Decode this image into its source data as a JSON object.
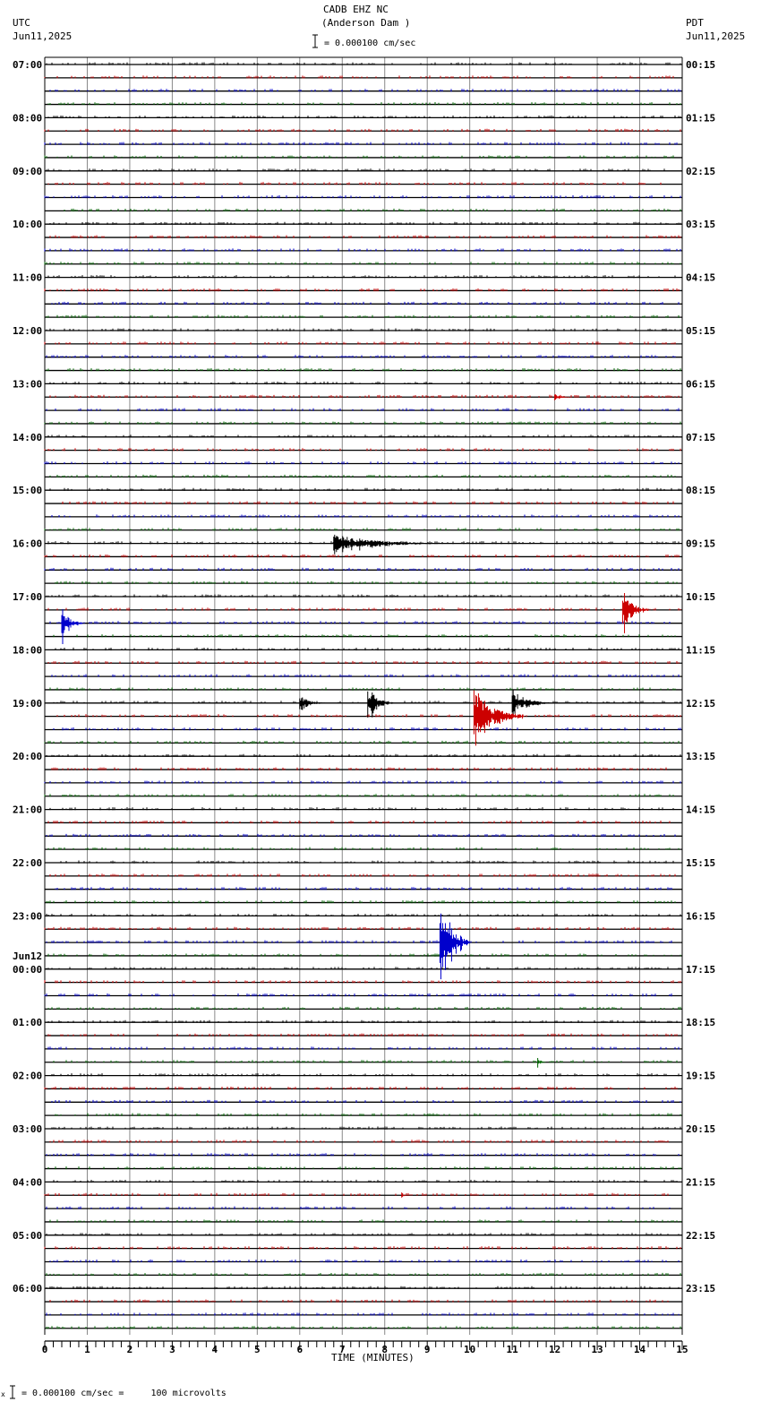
{
  "header": {
    "station": "CADB EHZ NC",
    "site": "(Anderson Dam )",
    "left_tz": "UTC",
    "left_date": "Jun11,2025",
    "right_tz": "PDT",
    "right_date": "Jun11,2025",
    "scale_text": "= 0.000100 cm/sec"
  },
  "footer": {
    "scale_text": "= 0.000100 cm/sec =     100 microvolts",
    "prefix": "x"
  },
  "date_change_label": "Jun12",
  "chart_data": {
    "type": "line",
    "title": "CADB EHZ NC (Anderson Dam )",
    "xlabel": "TIME (MINUTES)",
    "ylabel": "",
    "x_ticks": [
      0,
      1,
      2,
      3,
      4,
      5,
      6,
      7,
      8,
      9,
      10,
      11,
      12,
      13,
      14,
      15
    ],
    "xlim": [
      0,
      15
    ],
    "minor_ticks_per_minute": 5,
    "grid": true,
    "traces_per_hour": 4,
    "trace_count": 96,
    "trace_colors": [
      "#000000",
      "#cc0000",
      "#0000cc",
      "#006600"
    ],
    "left_labels": [
      "07:00",
      "08:00",
      "09:00",
      "10:00",
      "11:00",
      "12:00",
      "13:00",
      "14:00",
      "15:00",
      "16:00",
      "17:00",
      "18:00",
      "19:00",
      "20:00",
      "21:00",
      "22:00",
      "23:00",
      "00:00",
      "01:00",
      "02:00",
      "03:00",
      "04:00",
      "05:00",
      "06:00"
    ],
    "right_labels": [
      "00:15",
      "01:15",
      "02:15",
      "03:15",
      "04:15",
      "05:15",
      "06:15",
      "07:15",
      "08:15",
      "09:15",
      "10:15",
      "11:15",
      "12:15",
      "13:15",
      "14:15",
      "15:15",
      "16:15",
      "17:15",
      "18:15",
      "19:15",
      "20:15",
      "21:15",
      "22:15",
      "23:15"
    ],
    "events": [
      {
        "trace": 36,
        "start_min": 6.8,
        "end_min": 9.2,
        "amp": 9,
        "label": "16:00 small burst"
      },
      {
        "trace": 42,
        "start_min": 0.4,
        "end_min": 0.9,
        "amp": 14,
        "label": "17:30 local event"
      },
      {
        "trace": 41,
        "start_min": 13.6,
        "end_min": 14.2,
        "amp": 18,
        "label": "17:15 local event"
      },
      {
        "trace": 48,
        "start_min": 6.0,
        "end_min": 6.6,
        "amp": 7,
        "label": "19:00 burst"
      },
      {
        "trace": 48,
        "start_min": 7.6,
        "end_min": 8.2,
        "amp": 16,
        "label": "19:00 burst"
      },
      {
        "trace": 48,
        "start_min": 11.0,
        "end_min": 11.9,
        "amp": 13,
        "label": "19:00 burst"
      },
      {
        "trace": 49,
        "start_min": 10.1,
        "end_min": 11.3,
        "amp": 26,
        "label": "19:15 event"
      },
      {
        "trace": 66,
        "start_min": 9.3,
        "end_min": 10.0,
        "amp": 50,
        "label": "23:30 teleseism spike"
      },
      {
        "trace": 75,
        "start_min": 11.6,
        "end_min": 11.8,
        "amp": 4,
        "label": "01:45 blip"
      },
      {
        "trace": 25,
        "start_min": 12.0,
        "end_min": 12.4,
        "amp": 3,
        "label": "13:15 blip"
      },
      {
        "trace": 85,
        "start_min": 8.4,
        "end_min": 8.5,
        "amp": 4,
        "label": "04:15 blip"
      }
    ]
  }
}
